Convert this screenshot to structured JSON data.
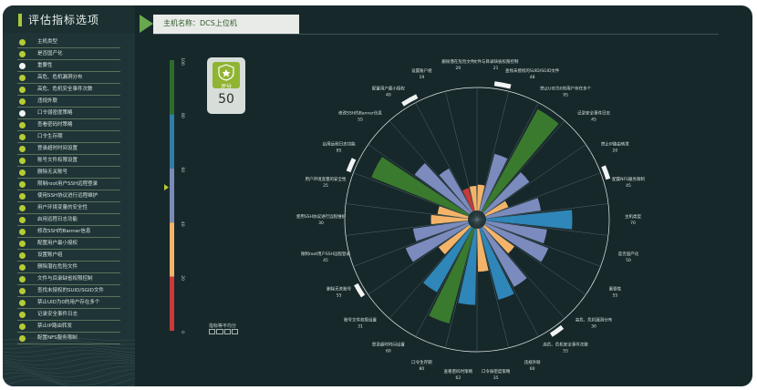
{
  "sidebar": {
    "title": "评估指标选项",
    "items": [
      {
        "label": "主机类型",
        "on": true
      },
      {
        "label": "是否国产化",
        "on": true
      },
      {
        "label": "重要性",
        "on": false
      },
      {
        "label": "高危、危机漏洞分布",
        "on": true
      },
      {
        "label": "高危、危机安全事件次数",
        "on": true
      },
      {
        "label": "违规外联",
        "on": true
      },
      {
        "label": "口令弱密度策略",
        "on": false
      },
      {
        "label": "查看密码时策略",
        "on": true
      },
      {
        "label": "口令生存期",
        "on": true
      },
      {
        "label": "登录超时时间设置",
        "on": true
      },
      {
        "label": "账号文件权限设置",
        "on": true
      },
      {
        "label": "删除无关账号",
        "on": true
      },
      {
        "label": "限制root用户SSH远程登录",
        "on": true
      },
      {
        "label": "使用SSH协议进行远程维护",
        "on": true
      },
      {
        "label": "用户环境变量的安全性",
        "on": true
      },
      {
        "label": "启用远程日志功能",
        "on": true
      },
      {
        "label": "修改SSH的Banner信息",
        "on": true
      },
      {
        "label": "配置用户最小授权",
        "on": true
      },
      {
        "label": "设置账户组",
        "on": true
      },
      {
        "label": "删除潜在危险文件",
        "on": true
      },
      {
        "label": "文件与目录缺省权限控制",
        "on": true
      },
      {
        "label": "查找未授权的SUID/SGID文件",
        "on": true
      },
      {
        "label": "禁止UID为0的用户存在多个",
        "on": true
      },
      {
        "label": "记录安全事件日志",
        "on": true
      },
      {
        "label": "禁止IP路由转发",
        "on": true
      },
      {
        "label": "配置NFS服务限制",
        "on": true
      }
    ]
  },
  "header": {
    "host_label": "主机名称：DCS上位机"
  },
  "score": {
    "label": "评分",
    "value": "50"
  },
  "gauge": {
    "ticks": [
      "100",
      "80",
      "60",
      "40",
      "20",
      "0"
    ],
    "pointer_value": 53,
    "segments": [
      {
        "from": 80,
        "to": 100,
        "color": "#2e6b2b"
      },
      {
        "from": 60,
        "to": 80,
        "color": "#2e7ea6"
      },
      {
        "from": 40,
        "to": 60,
        "color": "#7b8bb8"
      },
      {
        "from": 20,
        "to": 40,
        "color": "#f3b46a"
      },
      {
        "from": 0,
        "to": 20,
        "color": "#c83a3a"
      }
    ],
    "legend_title": "指标等平均分"
  },
  "chart_data": {
    "type": "polar-bar",
    "rmax": 100,
    "categories": [
      {
        "name": "文件与目录缺省权限控制",
        "value": 21
      },
      {
        "name": "查找未授权的SUID/SGID文件",
        "value": 48
      },
      {
        "name": "禁止UID为0的用户存在多个",
        "value": 95
      },
      {
        "name": "记录安全事件日志",
        "value": 45
      },
      {
        "name": "禁止IP路由转发",
        "value": 20
      },
      {
        "name": "配置NFS服务限制",
        "value": 45
      },
      {
        "name": "主机类型",
        "value": 70
      },
      {
        "name": "是否国产化",
        "value": 50
      },
      {
        "name": "重要性",
        "value": 55
      },
      {
        "name": "高危、危机漏洞分布",
        "value": 30
      },
      {
        "name": "高危、危机安全事件次数",
        "value": 55
      },
      {
        "name": "违规外联",
        "value": 60
      },
      {
        "name": "口令弱密度策略",
        "value": 35
      },
      {
        "name": "查看密码时策略",
        "value": 62
      },
      {
        "name": "口令生存期",
        "value": 80
      },
      {
        "name": "登录超时时间设置",
        "value": 60
      },
      {
        "name": "账号文件权限设置",
        "value": 31
      },
      {
        "name": "删除无关账号",
        "value": 55
      },
      {
        "name": "限制root用户SSH远程登录",
        "value": 45
      },
      {
        "name": "使用SSH协议进行远程维护",
        "value": 30
      },
      {
        "name": "用户环境变量的安全性",
        "value": 25
      },
      {
        "name": "启用远程日志功能",
        "value": 85
      },
      {
        "name": "修改SSH的Banner信息",
        "value": 55
      },
      {
        "name": "配置用户最小授权",
        "value": 40
      },
      {
        "name": "设置账户组",
        "value": 19
      },
      {
        "name": "删除潜在危险文件",
        "value": 20
      }
    ],
    "color_bands": [
      {
        "min": 80,
        "color": "#3a7a2e"
      },
      {
        "min": 60,
        "color": "#2f86b8"
      },
      {
        "min": 40,
        "color": "#7b8bbd"
      },
      {
        "min": 20,
        "color": "#f3b46a"
      },
      {
        "min": 0,
        "color": "#c83a3a"
      }
    ]
  }
}
